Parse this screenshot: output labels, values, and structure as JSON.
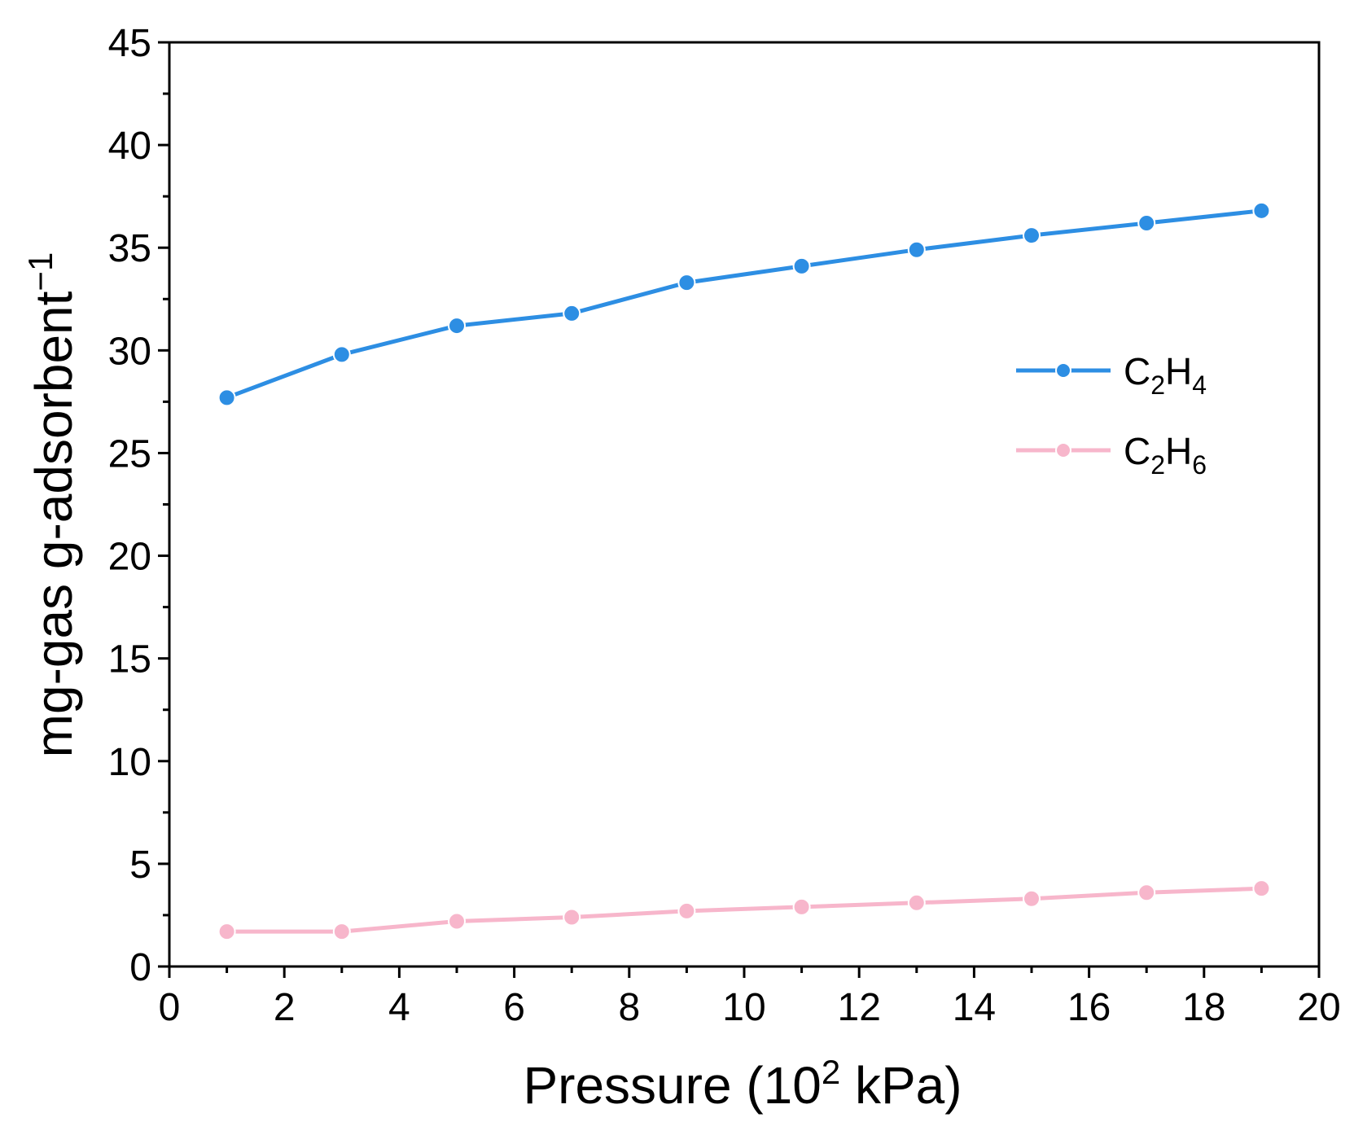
{
  "chart_data": {
    "type": "line",
    "title": "",
    "xlabel": "Pressure (10",
    "xlabel_sup": "2",
    "xlabel_tail": " kPa)",
    "ylabel": "mg-gas g-adsorbent",
    "ylabel_sup": "−1",
    "xlim": [
      0,
      20
    ],
    "ylim": [
      0,
      45
    ],
    "xticks": [
      0,
      2,
      4,
      6,
      8,
      10,
      12,
      14,
      16,
      18,
      20
    ],
    "yticks": [
      0,
      5,
      10,
      15,
      20,
      25,
      30,
      35,
      40,
      45
    ],
    "legend_position": "right-upper",
    "series": [
      {
        "name": "C2H4",
        "label_main": "C",
        "label_sub1": "2",
        "label_mid": "H",
        "label_sub2": "4",
        "color": "#2d8ee3",
        "x": [
          1,
          3,
          5,
          7,
          9,
          11,
          13,
          15,
          17,
          19
        ],
        "y": [
          27.7,
          29.8,
          31.2,
          31.8,
          33.3,
          34.1,
          34.9,
          35.6,
          36.2,
          36.8
        ]
      },
      {
        "name": "C2H6",
        "label_main": "C",
        "label_sub1": "2",
        "label_mid": "H",
        "label_sub2": "6",
        "color": "#f7b6cb",
        "x": [
          1,
          3,
          5,
          7,
          9,
          11,
          13,
          15,
          17,
          19
        ],
        "y": [
          1.7,
          1.7,
          2.2,
          2.4,
          2.7,
          2.9,
          3.1,
          3.3,
          3.6,
          3.8
        ]
      }
    ]
  }
}
